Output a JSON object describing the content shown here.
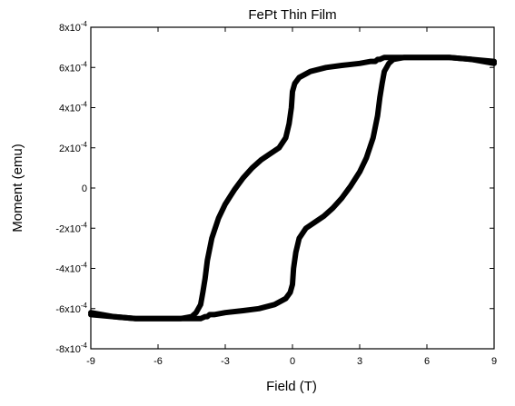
{
  "chart_data": {
    "type": "line",
    "title": "FePt Thin Film",
    "xlabel": "Field (T)",
    "ylabel": "Moment (emu)",
    "xlim": [
      -9,
      9
    ],
    "ylim": [
      -0.0008,
      0.0008
    ],
    "x_ticks": [
      -9,
      -6,
      -3,
      0,
      3,
      6,
      9
    ],
    "x_tick_labels": [
      "-9",
      "-6",
      "-3",
      "0",
      "3",
      "6",
      "9"
    ],
    "y_ticks": [
      0.0008,
      0.0006,
      0.0004,
      0.0002,
      0,
      -0.0002,
      -0.0004,
      -0.0006,
      -0.0008
    ],
    "y_tick_labels": [
      {
        "base": "8x10",
        "exp": "-4"
      },
      {
        "base": "6x10",
        "exp": "-4"
      },
      {
        "base": "4x10",
        "exp": "-4"
      },
      {
        "base": "2x10",
        "exp": "-4"
      },
      {
        "base": "0",
        "exp": ""
      },
      {
        "base": "-2x10",
        "exp": "-4"
      },
      {
        "base": "-4x10",
        "exp": "-4"
      },
      {
        "base": "-6x10",
        "exp": "-4"
      },
      {
        "base": "-8x10",
        "exp": "-4"
      }
    ],
    "grid": false,
    "legend": "none",
    "series": [
      {
        "color": "#000000",
        "x": [
          9,
          8,
          7,
          6,
          5,
          4.5,
          4.3,
          4.1,
          4.0,
          3.9,
          3.8,
          3.6,
          3.3,
          3.0,
          2.6,
          2.2,
          1.8,
          1.4,
          1.0,
          0.6,
          0.3,
          0.15,
          0.05,
          0,
          -0.1,
          -0.3,
          -0.8,
          -1.5,
          -2.2,
          -3.0,
          -3.5,
          -3.7,
          -3.8,
          -3.9,
          -4.1,
          -4.3,
          -4.6,
          -5.0,
          -6.0,
          -7.0,
          -8.0,
          -9.0
        ],
        "y": [
          0.00062,
          0.00064,
          0.00065,
          0.00065,
          0.00065,
          0.00064,
          0.00062,
          0.00058,
          0.00052,
          0.00045,
          0.00036,
          0.00025,
          0.00015,
          8e-05,
          1e-05,
          -5e-05,
          -0.0001,
          -0.00014,
          -0.00017,
          -0.0002,
          -0.00025,
          -0.00032,
          -0.0004,
          -0.00048,
          -0.00052,
          -0.00055,
          -0.00058,
          -0.0006,
          -0.00061,
          -0.00062,
          -0.00063,
          -0.00063,
          -0.00064,
          -0.00064,
          -0.00065,
          -0.00065,
          -0.00065,
          -0.00065,
          -0.00065,
          -0.00065,
          -0.00064,
          -0.00063
        ]
      },
      {
        "color": "#000000",
        "x": [
          -9,
          -8,
          -7,
          -6,
          -5,
          -4.5,
          -4.3,
          -4.1,
          -4.0,
          -3.9,
          -3.8,
          -3.6,
          -3.3,
          -3.0,
          -2.6,
          -2.2,
          -1.8,
          -1.4,
          -1.0,
          -0.6,
          -0.3,
          -0.15,
          -0.05,
          0,
          0.1,
          0.3,
          0.8,
          1.5,
          2.2,
          3.0,
          3.5,
          3.7,
          3.8,
          3.9,
          4.1,
          4.3,
          4.6,
          5.0,
          6.0,
          7.0,
          8.0,
          9.0
        ],
        "y": [
          -0.00062,
          -0.00064,
          -0.00065,
          -0.00065,
          -0.00065,
          -0.00064,
          -0.00062,
          -0.00058,
          -0.00052,
          -0.00045,
          -0.00036,
          -0.00025,
          -0.00015,
          -8e-05,
          -1e-05,
          5e-05,
          0.0001,
          0.00014,
          0.00017,
          0.0002,
          0.00025,
          0.00032,
          0.0004,
          0.00048,
          0.00052,
          0.00055,
          0.00058,
          0.0006,
          0.00061,
          0.00062,
          0.00063,
          0.00063,
          0.00064,
          0.00064,
          0.00065,
          0.00065,
          0.00065,
          0.00065,
          0.00065,
          0.00065,
          0.00064,
          0.00063
        ]
      }
    ]
  }
}
